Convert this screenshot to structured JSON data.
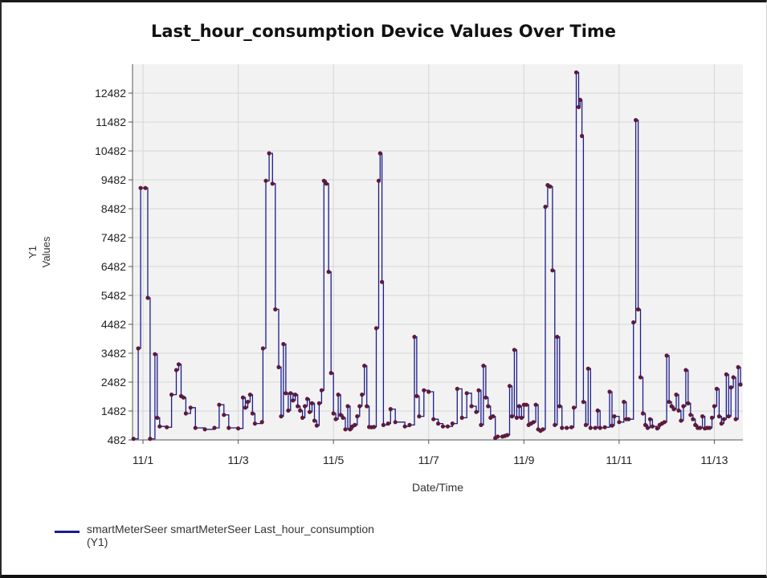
{
  "chart_data": {
    "type": "line",
    "title": "Last_hour_consumption Device Values Over Time",
    "xlabel": "Date/Time",
    "ylabel": "Values",
    "ylabel_prefix": "Y1",
    "yticks": [
      482,
      1482,
      2482,
      3482,
      4482,
      5482,
      6482,
      7482,
      8482,
      9482,
      10482,
      11482,
      12482
    ],
    "ylim": [
      482,
      13482
    ],
    "xticks": [
      {
        "label": "11/1",
        "day": 0
      },
      {
        "label": "11/3",
        "day": 2
      },
      {
        "label": "11/5",
        "day": 4
      },
      {
        "label": "11/7",
        "day": 6
      },
      {
        "label": "11/9",
        "day": 8
      },
      {
        "label": "11/11",
        "day": 10
      },
      {
        "label": "11/13",
        "day": 12
      }
    ],
    "xlim": [
      -0.22,
      12.6
    ],
    "grid": true,
    "line_color": "#1c1c8c",
    "marker_color": "#5e1a3a",
    "plot_background": "#f2f2f2",
    "series": [
      {
        "name": "smartMeterSeer smartMeterSeer Last_hour_consumption",
        "axis": "(Y1)",
        "points": [
          [
            -0.2,
            520
          ],
          [
            -0.1,
            3650
          ],
          [
            -0.05,
            9200
          ],
          [
            0.05,
            9200
          ],
          [
            0.1,
            5400
          ],
          [
            0.15,
            520
          ],
          [
            0.25,
            3450
          ],
          [
            0.3,
            1250
          ],
          [
            0.35,
            950
          ],
          [
            0.5,
            920
          ],
          [
            0.6,
            2050
          ],
          [
            0.7,
            2900
          ],
          [
            0.75,
            3100
          ],
          [
            0.8,
            2000
          ],
          [
            0.85,
            1950
          ],
          [
            0.9,
            1400
          ],
          [
            1.0,
            1600
          ],
          [
            1.1,
            900
          ],
          [
            1.3,
            850
          ],
          [
            1.5,
            900
          ],
          [
            1.6,
            1700
          ],
          [
            1.7,
            1350
          ],
          [
            1.8,
            900
          ],
          [
            2.0,
            880
          ],
          [
            2.1,
            1950
          ],
          [
            2.15,
            1600
          ],
          [
            2.2,
            1800
          ],
          [
            2.25,
            2050
          ],
          [
            2.3,
            1400
          ],
          [
            2.35,
            1050
          ],
          [
            2.5,
            1100
          ],
          [
            2.52,
            3650
          ],
          [
            2.58,
            9450
          ],
          [
            2.65,
            10400
          ],
          [
            2.72,
            9350
          ],
          [
            2.78,
            5000
          ],
          [
            2.85,
            3000
          ],
          [
            2.9,
            1300
          ],
          [
            2.95,
            3800
          ],
          [
            3.0,
            2100
          ],
          [
            3.05,
            1500
          ],
          [
            3.1,
            2100
          ],
          [
            3.15,
            1850
          ],
          [
            3.2,
            2050
          ],
          [
            3.25,
            1650
          ],
          [
            3.3,
            1500
          ],
          [
            3.35,
            1250
          ],
          [
            3.4,
            1650
          ],
          [
            3.45,
            1900
          ],
          [
            3.5,
            1450
          ],
          [
            3.55,
            1750
          ],
          [
            3.6,
            1150
          ],
          [
            3.65,
            980
          ],
          [
            3.7,
            1750
          ],
          [
            3.75,
            2200
          ],
          [
            3.8,
            9450
          ],
          [
            3.85,
            9350
          ],
          [
            3.9,
            6300
          ],
          [
            3.95,
            2800
          ],
          [
            4.0,
            1400
          ],
          [
            4.05,
            1200
          ],
          [
            4.1,
            2050
          ],
          [
            4.15,
            1350
          ],
          [
            4.2,
            1250
          ],
          [
            4.25,
            850
          ],
          [
            4.3,
            1650
          ],
          [
            4.35,
            850
          ],
          [
            4.4,
            950
          ],
          [
            4.45,
            1000
          ],
          [
            4.5,
            1300
          ],
          [
            4.55,
            1650
          ],
          [
            4.6,
            2050
          ],
          [
            4.65,
            3050
          ],
          [
            4.7,
            1650
          ],
          [
            4.75,
            930
          ],
          [
            4.8,
            920
          ],
          [
            4.85,
            930
          ],
          [
            4.9,
            4350
          ],
          [
            4.95,
            9450
          ],
          [
            4.98,
            10400
          ],
          [
            5.02,
            5950
          ],
          [
            5.05,
            1000
          ],
          [
            5.15,
            1050
          ],
          [
            5.2,
            1550
          ],
          [
            5.3,
            1100
          ],
          [
            5.5,
            950
          ],
          [
            5.6,
            1000
          ],
          [
            5.7,
            4050
          ],
          [
            5.75,
            2000
          ],
          [
            5.8,
            1300
          ],
          [
            5.9,
            2200
          ],
          [
            6.0,
            2150
          ],
          [
            6.1,
            1200
          ],
          [
            6.2,
            1050
          ],
          [
            6.3,
            950
          ],
          [
            6.4,
            950
          ],
          [
            6.5,
            1050
          ],
          [
            6.6,
            2250
          ],
          [
            6.7,
            1250
          ],
          [
            6.8,
            2100
          ],
          [
            6.9,
            1650
          ],
          [
            7.0,
            1450
          ],
          [
            7.05,
            2200
          ],
          [
            7.1,
            1000
          ],
          [
            7.15,
            3050
          ],
          [
            7.2,
            1950
          ],
          [
            7.25,
            1650
          ],
          [
            7.3,
            1250
          ],
          [
            7.35,
            1300
          ],
          [
            7.4,
            550
          ],
          [
            7.45,
            600
          ],
          [
            7.55,
            600
          ],
          [
            7.6,
            620
          ],
          [
            7.65,
            650
          ],
          [
            7.7,
            2350
          ],
          [
            7.75,
            1300
          ],
          [
            7.8,
            3600
          ],
          [
            7.85,
            1250
          ],
          [
            7.9,
            1650
          ],
          [
            7.95,
            1250
          ],
          [
            8.0,
            1700
          ],
          [
            8.05,
            1700
          ],
          [
            8.1,
            1000
          ],
          [
            8.15,
            1050
          ],
          [
            8.2,
            1100
          ],
          [
            8.25,
            1700
          ],
          [
            8.3,
            850
          ],
          [
            8.35,
            800
          ],
          [
            8.4,
            850
          ],
          [
            8.45,
            8550
          ],
          [
            8.5,
            9300
          ],
          [
            8.55,
            9250
          ],
          [
            8.6,
            6350
          ],
          [
            8.65,
            1000
          ],
          [
            8.7,
            4050
          ],
          [
            8.75,
            1650
          ],
          [
            8.8,
            900
          ],
          [
            8.9,
            900
          ],
          [
            9.0,
            920
          ],
          [
            9.05,
            1600
          ],
          [
            9.1,
            13200
          ],
          [
            9.15,
            12000
          ],
          [
            9.18,
            12250
          ],
          [
            9.22,
            11000
          ],
          [
            9.25,
            1800
          ],
          [
            9.3,
            1000
          ],
          [
            9.35,
            2950
          ],
          [
            9.4,
            900
          ],
          [
            9.5,
            900
          ],
          [
            9.55,
            1500
          ],
          [
            9.6,
            900
          ],
          [
            9.7,
            920
          ],
          [
            9.8,
            2150
          ],
          [
            9.85,
            980
          ],
          [
            9.9,
            1300
          ],
          [
            10.0,
            1100
          ],
          [
            10.1,
            1800
          ],
          [
            10.15,
            1200
          ],
          [
            10.2,
            1200
          ],
          [
            10.3,
            4550
          ],
          [
            10.35,
            11550
          ],
          [
            10.4,
            5000
          ],
          [
            10.45,
            2650
          ],
          [
            10.5,
            1400
          ],
          [
            10.55,
            1000
          ],
          [
            10.6,
            900
          ],
          [
            10.65,
            1200
          ],
          [
            10.7,
            950
          ],
          [
            10.8,
            880
          ],
          [
            10.85,
            1000
          ],
          [
            10.9,
            1050
          ],
          [
            10.95,
            1100
          ],
          [
            11.0,
            3400
          ],
          [
            11.05,
            1800
          ],
          [
            11.1,
            1650
          ],
          [
            11.15,
            1550
          ],
          [
            11.2,
            2050
          ],
          [
            11.25,
            1500
          ],
          [
            11.3,
            1150
          ],
          [
            11.35,
            1650
          ],
          [
            11.4,
            2900
          ],
          [
            11.45,
            1750
          ],
          [
            11.5,
            1350
          ],
          [
            11.55,
            1200
          ],
          [
            11.6,
            1000
          ],
          [
            11.65,
            900
          ],
          [
            11.7,
            900
          ],
          [
            11.75,
            1300
          ],
          [
            11.8,
            880
          ],
          [
            11.85,
            900
          ],
          [
            11.9,
            900
          ],
          [
            11.95,
            1250
          ],
          [
            12.0,
            1650
          ],
          [
            12.05,
            2250
          ],
          [
            12.1,
            1300
          ],
          [
            12.15,
            1050
          ],
          [
            12.2,
            1200
          ],
          [
            12.25,
            2750
          ],
          [
            12.3,
            1300
          ],
          [
            12.35,
            2300
          ],
          [
            12.4,
            2650
          ],
          [
            12.45,
            1200
          ],
          [
            12.5,
            3000
          ],
          [
            12.55,
            2400
          ]
        ]
      }
    ]
  },
  "legend": {
    "series_label": "smartMeterSeer smartMeterSeer Last_hour_consumption",
    "axis_label": "(Y1)"
  }
}
